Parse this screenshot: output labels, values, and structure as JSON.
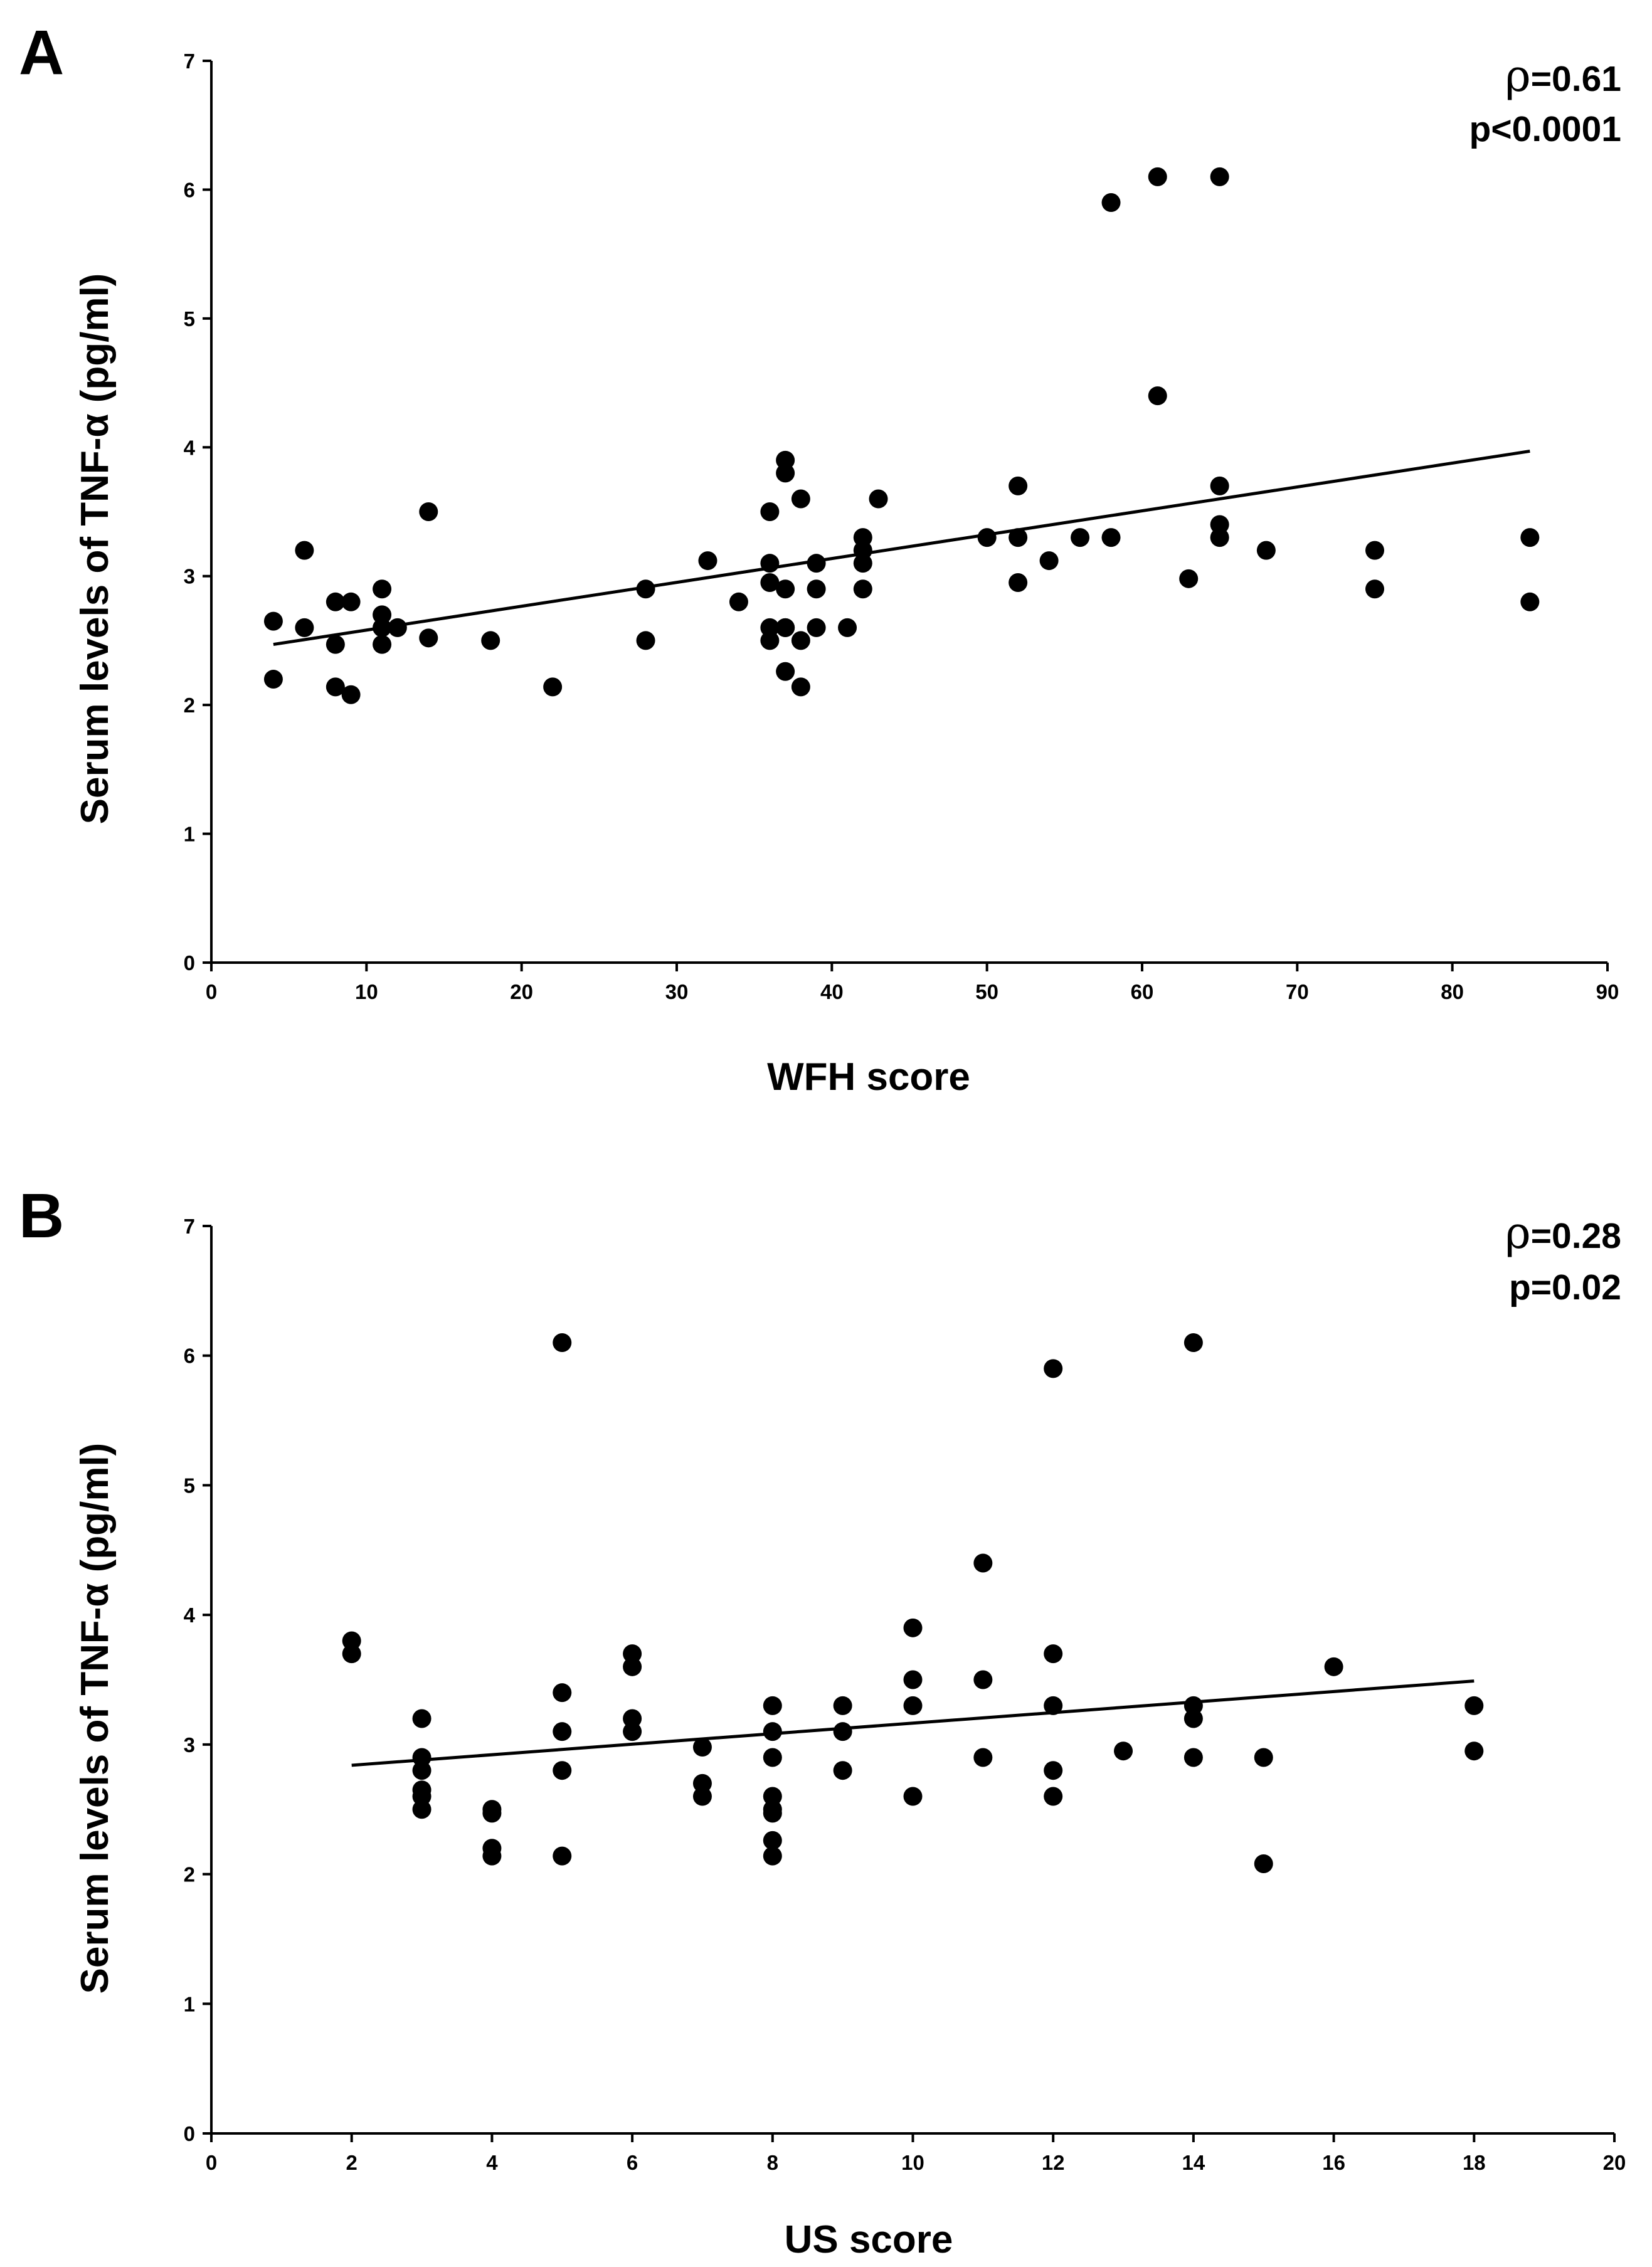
{
  "chart_data": [
    {
      "type": "scatter",
      "panel_label": "A",
      "title": "",
      "xlabel": "WFH score",
      "ylabel": "Serum levels of TNF-α (pg/ml)",
      "xlim": [
        0,
        90
      ],
      "ylim": [
        0,
        7
      ],
      "xticks": [
        0,
        10,
        20,
        30,
        40,
        50,
        60,
        70,
        80,
        90
      ],
      "yticks": [
        0,
        1,
        2,
        3,
        4,
        5,
        6,
        7
      ],
      "grid": false,
      "legend": "none",
      "stat": {
        "rho_symbol": "ρ",
        "rho_text": "=0.61",
        "p_text": "p<0.0001"
      },
      "trendline": {
        "x": [
          4,
          85
        ],
        "y": [
          2.47,
          3.97
        ]
      },
      "points": {
        "x": [
          4,
          4,
          6,
          6,
          8,
          8,
          8,
          9,
          9,
          11,
          11,
          11,
          11,
          12,
          14,
          14,
          18,
          22,
          28,
          28,
          32,
          34,
          36,
          36,
          36,
          36,
          36,
          37,
          37,
          37,
          37,
          37,
          37,
          38,
          38,
          38,
          39,
          39,
          39,
          41,
          42,
          42,
          42,
          42,
          43,
          50,
          52,
          52,
          52,
          54,
          56,
          58,
          58,
          61,
          61,
          63,
          65,
          65,
          65,
          65,
          68,
          75,
          75,
          85,
          85
        ],
        "y": [
          2.65,
          2.2,
          3.2,
          2.6,
          2.8,
          2.47,
          2.14,
          2.8,
          2.08,
          2.9,
          2.7,
          2.6,
          2.47,
          2.6,
          3.5,
          2.52,
          2.5,
          2.14,
          2.9,
          2.5,
          3.12,
          2.8,
          3.5,
          3.1,
          2.95,
          2.6,
          2.5,
          3.9,
          3.8,
          2.9,
          2.6,
          2.26,
          2.6,
          3.6,
          2.5,
          2.14,
          3.1,
          2.9,
          2.6,
          2.6,
          3.3,
          3.2,
          3.1,
          2.9,
          3.6,
          3.3,
          3.7,
          3.3,
          2.95,
          3.12,
          3.3,
          5.9,
          3.3,
          6.1,
          4.4,
          2.98,
          6.1,
          3.7,
          3.4,
          3.3,
          3.2,
          3.2,
          2.9,
          3.3,
          2.8
        ]
      }
    },
    {
      "type": "scatter",
      "panel_label": "B",
      "title": "",
      "xlabel": "US score",
      "ylabel": "Serum levels of TNF-α (pg/ml)",
      "xlim": [
        0,
        20
      ],
      "ylim": [
        0,
        7
      ],
      "xticks": [
        0,
        2,
        4,
        6,
        8,
        10,
        12,
        14,
        16,
        18,
        20
      ],
      "yticks": [
        0,
        1,
        2,
        3,
        4,
        5,
        6,
        7
      ],
      "grid": false,
      "legend": "none",
      "stat": {
        "rho_symbol": "ρ",
        "rho_text": "=0.28",
        "p_text": "p=0.02"
      },
      "trendline": {
        "x": [
          2,
          18
        ],
        "y": [
          2.84,
          3.49
        ]
      },
      "points": {
        "x": [
          2,
          2,
          3,
          3,
          3,
          3,
          3,
          3,
          4,
          4,
          4,
          4,
          5,
          5,
          5,
          5,
          5,
          6,
          6,
          6,
          6,
          7,
          7,
          7,
          8,
          8,
          8,
          8,
          8,
          8,
          8,
          8,
          9,
          9,
          9,
          10,
          10,
          10,
          10,
          11,
          11,
          11,
          12,
          12,
          12,
          12,
          12,
          13,
          14,
          14,
          14,
          14,
          15,
          15,
          16,
          18,
          18
        ],
        "y": [
          3.8,
          3.7,
          3.2,
          2.9,
          2.8,
          2.65,
          2.6,
          2.5,
          2.5,
          2.47,
          2.2,
          2.14,
          6.1,
          3.4,
          3.1,
          2.8,
          2.14,
          3.7,
          3.6,
          3.2,
          3.1,
          2.98,
          2.7,
          2.6,
          3.3,
          3.1,
          2.9,
          2.6,
          2.5,
          2.47,
          2.26,
          2.14,
          3.3,
          3.1,
          2.8,
          3.9,
          3.5,
          3.3,
          2.6,
          4.4,
          3.5,
          2.9,
          5.9,
          3.7,
          3.3,
          2.8,
          2.6,
          2.95,
          6.1,
          3.3,
          3.2,
          2.9,
          2.9,
          2.08,
          3.6,
          3.3,
          2.95
        ]
      }
    }
  ]
}
